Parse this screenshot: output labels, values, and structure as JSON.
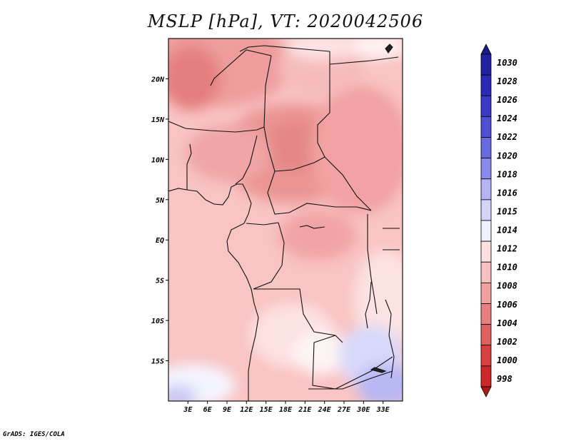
{
  "title": "MSLP [hPa], VT: 2020042506",
  "footer": "GrADS: IGES/COLA",
  "map": {
    "lon_range": [
      0,
      36
    ],
    "lat_range": [
      -20,
      25
    ],
    "lat_labels": [
      {
        "lat": 20,
        "text": "20N"
      },
      {
        "lat": 15,
        "text": "15N"
      },
      {
        "lat": 10,
        "text": "10N"
      },
      {
        "lat": 5,
        "text": "5N"
      },
      {
        "lat": 0,
        "text": "EQ"
      },
      {
        "lat": -5,
        "text": "5S"
      },
      {
        "lat": -10,
        "text": "10S"
      },
      {
        "lat": -15,
        "text": "15S"
      }
    ],
    "lon_labels": [
      {
        "lon": 3,
        "text": "3E"
      },
      {
        "lon": 6,
        "text": "6E"
      },
      {
        "lon": 9,
        "text": "9E"
      },
      {
        "lon": 12,
        "text": "12E"
      },
      {
        "lon": 15,
        "text": "15E"
      },
      {
        "lon": 18,
        "text": "18E"
      },
      {
        "lon": 21,
        "text": "21E"
      },
      {
        "lon": 24,
        "text": "24E"
      },
      {
        "lon": 27,
        "text": "27E"
      },
      {
        "lon": 30,
        "text": "30E"
      },
      {
        "lon": 33,
        "text": "33E"
      }
    ]
  },
  "colorbar": {
    "levels": [
      {
        "label": "1030",
        "color": "#1a1a8c"
      },
      {
        "label": "1028",
        "color": "#2020a0"
      },
      {
        "label": "1026",
        "color": "#2a2ab4"
      },
      {
        "label": "1024",
        "color": "#3a3ac4"
      },
      {
        "label": "1022",
        "color": "#5050d2"
      },
      {
        "label": "1020",
        "color": "#6a6ae0"
      },
      {
        "label": "1018",
        "color": "#8a8aec"
      },
      {
        "label": "1016",
        "color": "#b4b4f4"
      },
      {
        "label": "1015",
        "color": "#d4d4fa"
      },
      {
        "label": "1014",
        "color": "#f0f0ff"
      },
      {
        "label": "1012",
        "color": "#fde0e0"
      },
      {
        "label": "1010",
        "color": "#f8c0c0"
      },
      {
        "label": "1008",
        "color": "#f2a0a0"
      },
      {
        "label": "1006",
        "color": "#e88080"
      },
      {
        "label": "1004",
        "color": "#e06060"
      },
      {
        "label": "1002",
        "color": "#d84040"
      },
      {
        "label": "1000",
        "color": "#cc2828"
      },
      {
        "label": "998",
        "color": "#b01818"
      }
    ]
  }
}
